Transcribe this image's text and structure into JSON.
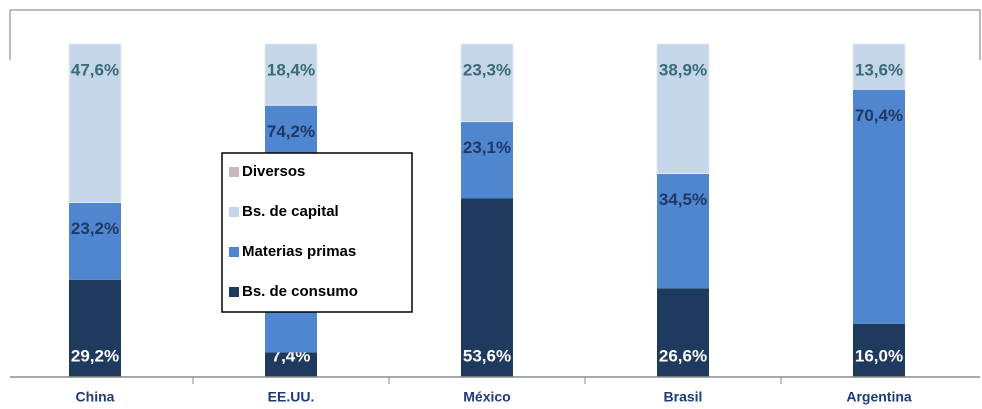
{
  "chart_data": {
    "type": "stacked_bar",
    "categories": [
      "China",
      "EE.UU.",
      "México",
      "Brasil",
      "Argentina"
    ],
    "ylim": [
      0,
      100
    ],
    "series": [
      {
        "name": "Bs. de consumo",
        "color": "#1f3a5f",
        "values": [
          29.2,
          7.4,
          53.6,
          26.6,
          16.0
        ],
        "value_labels": [
          "29,2%",
          "7,4%",
          "53,6%",
          "26,6%",
          "16,0%"
        ]
      },
      {
        "name": "Materias primas",
        "color": "#4f86cf",
        "values": [
          23.2,
          74.2,
          23.1,
          34.5,
          70.4
        ],
        "value_labels": [
          "23,2%",
          "74,2%",
          "23,1%",
          "34,5%",
          "70,4%"
        ]
      },
      {
        "name": "Bs. de capital",
        "color": "#c5d5ea",
        "values": [
          47.6,
          18.4,
          23.3,
          38.9,
          13.6
        ],
        "value_labels": [
          "47,6%",
          "18,4%",
          "23,3%",
          "38,9%",
          "13,6%"
        ]
      },
      {
        "name": "Diversos",
        "color": "#c9b7b9",
        "values": [
          0,
          0,
          0,
          0,
          0
        ]
      }
    ],
    "legend": "inside-left"
  }
}
